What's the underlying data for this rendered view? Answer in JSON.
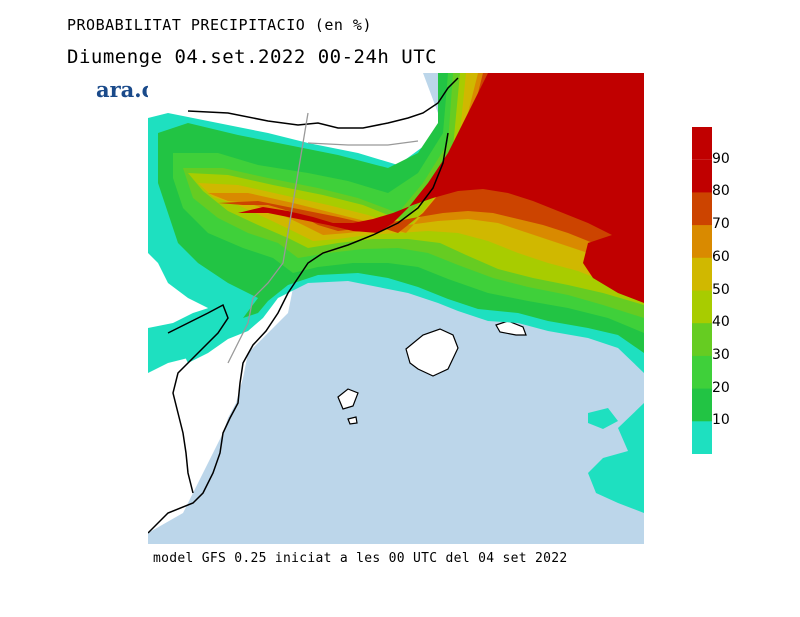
{
  "title": "PROBABILITAT PRECIPITACIO (en %)",
  "subtitle": "Diumenge  04.set.2022 00-24h UTC",
  "logo": "ara.cat",
  "footer": "model GFS 0.25 iniciat a les 00 UTC del 04 set 2022",
  "colors": {
    "sea": "#bcd6ea",
    "land": "#ffffff",
    "border": "#000000",
    "internal_border": "#999999"
  },
  "legend": {
    "levels": [
      {
        "label": "10",
        "color": "#1ee0c0"
      },
      {
        "label": "20",
        "color": "#22c444"
      },
      {
        "label": "30",
        "color": "#3fd03a"
      },
      {
        "label": "40",
        "color": "#66cc22"
      },
      {
        "label": "50",
        "color": "#a8cc00"
      },
      {
        "label": "60",
        "color": "#d0b800"
      },
      {
        "label": "70",
        "color": "#d98a00"
      },
      {
        "label": "80",
        "color": "#cc4400"
      },
      {
        "label": "90",
        "color": "#c00000"
      }
    ],
    "top_color": "#c00000"
  }
}
